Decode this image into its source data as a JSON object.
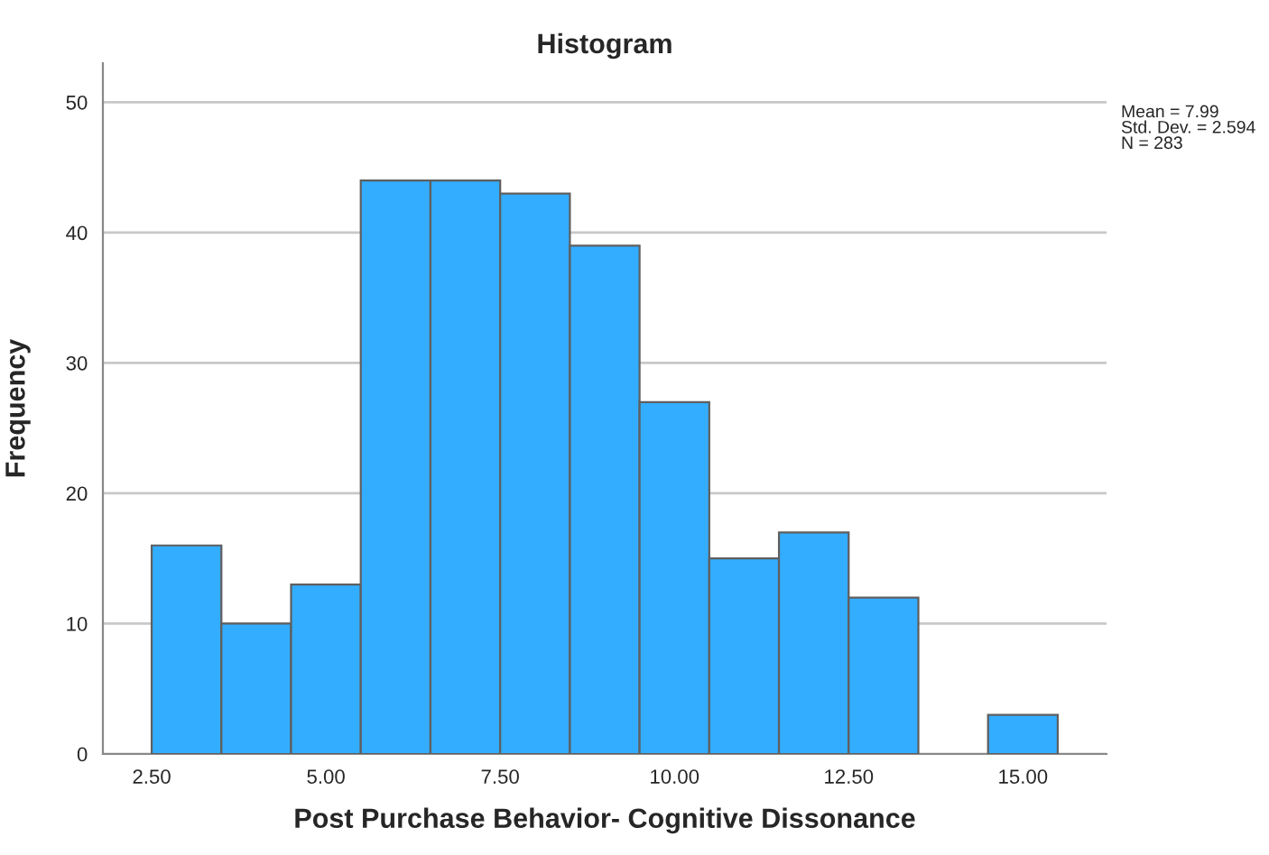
{
  "chart_data": {
    "type": "histogram",
    "title": "Histogram",
    "xlabel": "Post Purchase Behavior- Cognitive Dissonance",
    "ylabel": "Frequency",
    "bins": [
      2.5,
      3.5,
      4.5,
      5.5,
      6.5,
      7.5,
      8.5,
      9.5,
      10.5,
      11.5,
      12.5,
      13.5,
      14.5,
      15.5
    ],
    "values": [
      16,
      10,
      13,
      44,
      44,
      43,
      39,
      27,
      15,
      17,
      12,
      0,
      3
    ],
    "color": "#33adff",
    "xlim": [
      1.8,
      16.2
    ],
    "ylim": [
      0,
      53
    ],
    "xticks": [
      {
        "value": 2.5,
        "label": "2.50"
      },
      {
        "value": 5,
        "label": "5.00"
      },
      {
        "value": 7.5,
        "label": "7.50"
      },
      {
        "value": 10,
        "label": "10.00"
      },
      {
        "value": 12.5,
        "label": "12.50"
      },
      {
        "value": 15,
        "label": "15.00"
      }
    ],
    "yticks": [
      0,
      10,
      20,
      30,
      40,
      50
    ],
    "grid": "y",
    "annotations": [
      "Mean = 7.99\nStd. Dev. = 2.594\nN = 283"
    ]
  }
}
